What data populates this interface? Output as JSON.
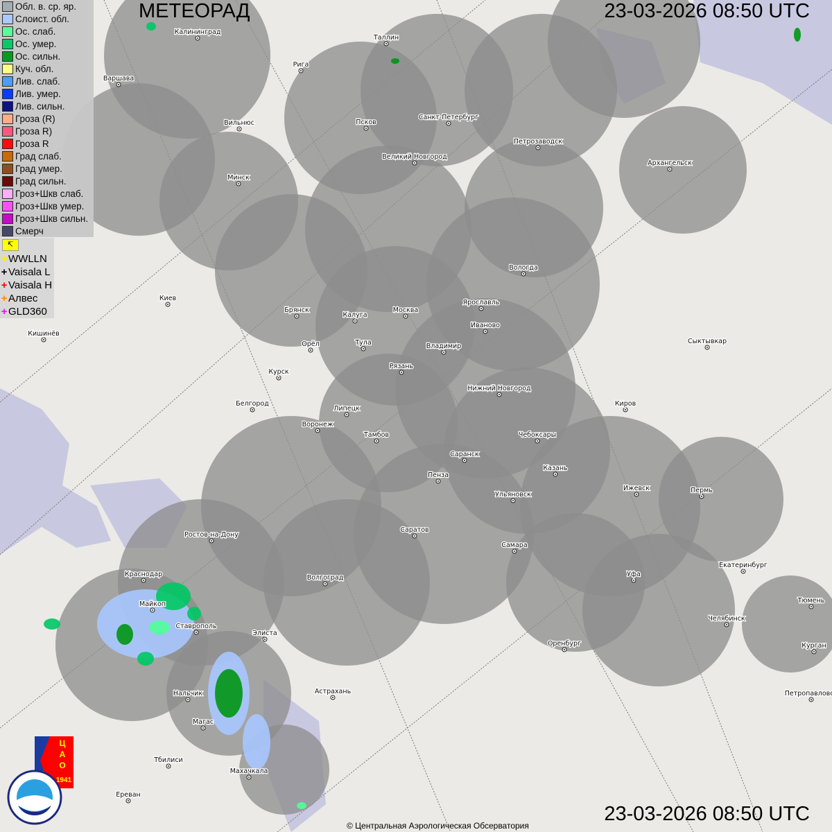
{
  "header": {
    "title": "МЕТЕОРАД",
    "timestamp": "23-03-2026  08:50 UTC"
  },
  "footer": {
    "copyright": "© Центральная Аэрологическая Обсерватория",
    "timestamp": "23-03-2026  08:50 UTC"
  },
  "legend": [
    {
      "label": "Обл. в. ср. яр.",
      "color": "#a0aab0"
    },
    {
      "label": "Слоист. обл.",
      "color": "#a8c8ff"
    },
    {
      "label": "Ос. слаб.",
      "color": "#50ff98"
    },
    {
      "label": "Ос. умер.",
      "color": "#00c864"
    },
    {
      "label": "Ос. сильн.",
      "color": "#009614"
    },
    {
      "label": "Куч. обл.",
      "color": "#ffff80"
    },
    {
      "label": "Лив. слаб.",
      "color": "#4696ff"
    },
    {
      "label": "Лив. умер.",
      "color": "#0032ff"
    },
    {
      "label": "Лив. сильн.",
      "color": "#000a78"
    },
    {
      "label": "Гроза (R)",
      "color": "#ffaa82"
    },
    {
      "label": "Гроза R)",
      "color": "#ff5078"
    },
    {
      "label": "Гроза R",
      "color": "#ff0000"
    },
    {
      "label": "Град слаб.",
      "color": "#c86400"
    },
    {
      "label": "Град умер.",
      "color": "#8c4614"
    },
    {
      "label": "Град сильн.",
      "color": "#640000"
    },
    {
      "label": "Гроз+Шкв слаб.",
      "color": "#ffaaff"
    },
    {
      "label": "Гроз+Шкв умер.",
      "color": "#ff46ff"
    },
    {
      "label": "Гроз+Шкв сильн.",
      "color": "#c800c8"
    },
    {
      "label": "Смерч",
      "color": "#404060"
    }
  ],
  "lightning": [
    {
      "label": "WWLLN",
      "color": "#ffee00"
    },
    {
      "label": "Vaisala L",
      "color": "#000000"
    },
    {
      "label": "Vaisala H",
      "color": "#ff0000"
    },
    {
      "label": "Алвес",
      "color": "#ff8800"
    },
    {
      "label": "GLD360",
      "color": "#ff00ff"
    }
  ],
  "logos": {
    "cao": "ЦАО 1941",
    "roshydromet": "РОСГИДРОМЕТ ROSHYDROMET"
  },
  "cities": [
    "Калининград",
    "Таллин",
    "Рига",
    "Варшава",
    "Вильнюс",
    "Псков",
    "Санкт-Петербург",
    "Петрозаводск",
    "Великий Новгород",
    "Архангельск",
    "Минск",
    "Вологда",
    "Киев",
    "Брянск",
    "Калуга",
    "Москва",
    "Ярославль",
    "Иваново",
    "Кишинёв",
    "Орёл",
    "Тула",
    "Владимир",
    "Сыктывкар",
    "Рязань",
    "Курск",
    "Нижний Новгород",
    "Белгород",
    "Липецк",
    "Киров",
    "Воронеж",
    "Тамбов",
    "Чебоксары",
    "Саранск",
    "Казань",
    "Пенза",
    "Ижевск",
    "Пермь",
    "Ульяновск",
    "Ростов-на-Дону",
    "Саратов",
    "Самара",
    "Екатеринбург",
    "Краснодар",
    "Волгоград",
    "Уфа",
    "Тюмень",
    "Майкоп",
    "Челябинск",
    "Ставрополь",
    "Элиста",
    "Оренбург",
    "Курган",
    "Астрахань",
    "Нальчик",
    "Петропавловск",
    "Магас",
    "Тбилиси",
    "Махачкала",
    "Ереван"
  ]
}
